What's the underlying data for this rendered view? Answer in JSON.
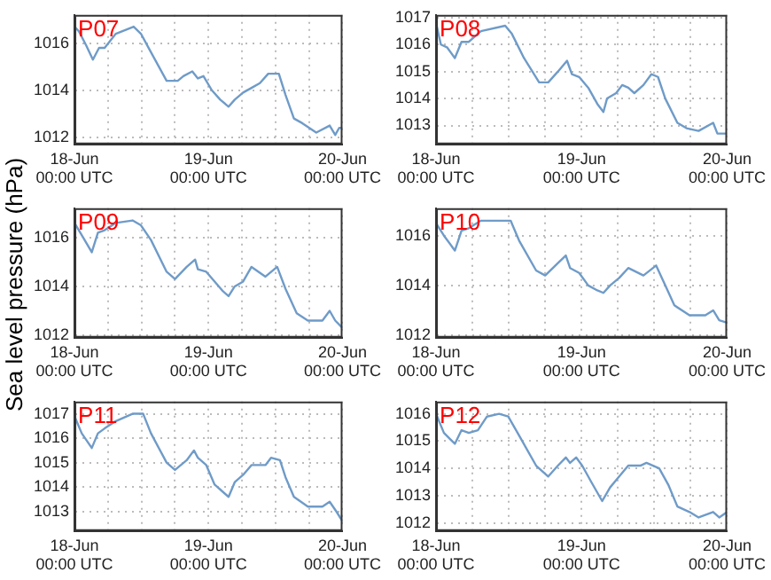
{
  "chart_data": [
    {
      "type": "line",
      "title": "P07",
      "x": [
        "--06-18T00:00",
        "--06-18T00:48",
        "--06-18T02:06",
        "--06-18T03:18",
        "--06-18T04:24",
        "--06-18T05:24",
        "--06-18T07:24",
        "--06-18T10:36",
        "--06-18T11:54",
        "--06-18T13:30",
        "--06-18T16:30",
        "--06-18T18:30",
        "--06-18T19:30",
        "--06-18T21:06",
        "--06-18T22:06",
        "--06-18T23:06",
        "--06-19T00:36",
        "--06-19T02:06",
        "--06-19T03:36",
        "--06-19T04:42",
        "--06-19T06:12",
        "--06-19T07:42",
        "--06-19T09:12",
        "--06-19T10:42",
        "--06-19T12:36",
        "--06-19T13:48",
        "--06-19T15:18",
        "--06-19T16:48",
        "--06-19T19:18",
        "--06-19T21:42",
        "--06-19T22:42",
        "--06-19T23:24",
        "--06-20T00:00"
      ],
      "values": [
        1016.7,
        1016.5,
        1015.9,
        1015.3,
        1015.8,
        1015.8,
        1016.4,
        1016.7,
        1016.4,
        1015.7,
        1014.4,
        1014.4,
        1014.6,
        1014.8,
        1014.5,
        1014.6,
        1014.0,
        1013.6,
        1013.3,
        1013.6,
        1013.9,
        1014.1,
        1014.3,
        1014.7,
        1014.7,
        1013.8,
        1012.8,
        1012.6,
        1012.2,
        1012.5,
        1012.1,
        1012.4,
        1012.4
      ],
      "color": "#6f9bc8",
      "xlim": [
        "--06-18T00:00",
        "--06-20T00:00"
      ],
      "xticks": [
        {
          "value": "--06-18T00:00",
          "label": "18-Jun\n00:00 UTC"
        },
        {
          "value": "--06-18T06:00",
          "label": null
        },
        {
          "value": "--06-18T12:00",
          "label": null
        },
        {
          "value": "--06-18T18:00",
          "label": null
        },
        {
          "value": "--06-19T00:00",
          "label": "19-Jun\n00:00 UTC"
        },
        {
          "value": "--06-19T06:00",
          "label": null
        },
        {
          "value": "--06-19T12:00",
          "label": null
        },
        {
          "value": "--06-19T18:00",
          "label": null
        },
        {
          "value": "--06-20T00:00",
          "label": "20-Jun\n00:00 UTC"
        }
      ],
      "ylim": [
        1011.7,
        1017.2
      ],
      "yticks": [
        1012,
        1014,
        1016
      ],
      "grid": true,
      "marker": "none"
    },
    {
      "type": "line",
      "title": "P08",
      "x": [
        "--06-18T00:00",
        "--06-18T00:48",
        "--06-18T01:48",
        "--06-18T03:06",
        "--06-18T04:12",
        "--06-18T05:24",
        "--06-18T07:24",
        "--06-18T11:24",
        "--06-18T12:30",
        "--06-18T14:30",
        "--06-18T17:00",
        "--06-18T18:30",
        "--06-18T20:06",
        "--06-18T21:36",
        "--06-18T22:24",
        "--06-18T23:36",
        "--06-19T01:06",
        "--06-19T02:36",
        "--06-19T03:36",
        "--06-19T04:12",
        "--06-19T05:42",
        "--06-19T06:42",
        "--06-19T07:42",
        "--06-19T08:42",
        "--06-19T10:12",
        "--06-19T11:30",
        "--06-19T12:36",
        "--06-19T13:48",
        "--06-19T15:48",
        "--06-19T17:18",
        "--06-19T19:18",
        "--06-19T21:42",
        "--06-19T22:24",
        "--06-20T00:00"
      ],
      "values": [
        1016.8,
        1016.0,
        1015.9,
        1015.5,
        1016.1,
        1016.1,
        1016.5,
        1016.7,
        1016.4,
        1015.5,
        1014.6,
        1014.6,
        1015.0,
        1015.4,
        1014.9,
        1014.8,
        1014.4,
        1013.8,
        1013.5,
        1014.0,
        1014.2,
        1014.5,
        1014.4,
        1014.2,
        1014.5,
        1014.9,
        1014.8,
        1014.0,
        1013.1,
        1012.9,
        1012.8,
        1013.1,
        1012.7,
        1012.7
      ],
      "color": "#6f9bc8",
      "xlim": [
        "--06-18T00:00",
        "--06-20T00:00"
      ],
      "xticks": [
        {
          "value": "--06-18T00:00",
          "label": "18-Jun\n00:00 UTC"
        },
        {
          "value": "--06-18T06:00",
          "label": null
        },
        {
          "value": "--06-18T12:00",
          "label": null
        },
        {
          "value": "--06-18T18:00",
          "label": null
        },
        {
          "value": "--06-19T00:00",
          "label": "19-Jun\n00:00 UTC"
        },
        {
          "value": "--06-19T06:00",
          "label": null
        },
        {
          "value": "--06-19T12:00",
          "label": null
        },
        {
          "value": "--06-19T18:00",
          "label": null
        },
        {
          "value": "--06-20T00:00",
          "label": "20-Jun\n00:00 UTC"
        }
      ],
      "ylim": [
        1012.3,
        1017.1
      ],
      "yticks": [
        1013,
        1014,
        1015,
        1016,
        1017
      ],
      "grid": true,
      "marker": "none"
    },
    {
      "type": "line",
      "title": "P09",
      "ylabel": "Sea level pressure (hPa)",
      "x": [
        "--06-18T00:00",
        "--06-18T01:18",
        "--06-18T03:06",
        "--06-18T04:12",
        "--06-18T05:24",
        "--06-18T07:24",
        "--06-18T10:24",
        "--06-18T11:54",
        "--06-18T13:42",
        "--06-18T16:30",
        "--06-18T18:00",
        "--06-18T20:06",
        "--06-18T21:36",
        "--06-18T22:06",
        "--06-18T23:36",
        "--06-19T01:06",
        "--06-19T02:36",
        "--06-19T03:36",
        "--06-19T04:42",
        "--06-19T06:12",
        "--06-19T07:42",
        "--06-19T10:12",
        "--06-19T12:18",
        "--06-19T13:48",
        "--06-19T15:48",
        "--06-19T17:48",
        "--06-19T20:24",
        "--06-19T21:42",
        "--06-19T22:42",
        "--06-20T00:00"
      ],
      "values": [
        1016.6,
        1016.1,
        1015.4,
        1016.2,
        1016.3,
        1016.6,
        1016.7,
        1016.5,
        1015.9,
        1014.6,
        1014.3,
        1014.8,
        1015.1,
        1014.7,
        1014.6,
        1014.2,
        1013.8,
        1013.6,
        1014.0,
        1014.2,
        1014.8,
        1014.4,
        1014.8,
        1013.9,
        1012.9,
        1012.6,
        1012.6,
        1013.0,
        1012.6,
        1012.3
      ],
      "color": "#6f9bc8",
      "xlim": [
        "--06-18T00:00",
        "--06-20T00:00"
      ],
      "xticks": [
        {
          "value": "--06-18T00:00",
          "label": "18-Jun\n00:00 UTC"
        },
        {
          "value": "--06-18T06:00",
          "label": null
        },
        {
          "value": "--06-18T12:00",
          "label": null
        },
        {
          "value": "--06-18T18:00",
          "label": null
        },
        {
          "value": "--06-19T00:00",
          "label": "19-Jun\n00:00 UTC"
        },
        {
          "value": "--06-19T06:00",
          "label": null
        },
        {
          "value": "--06-19T12:00",
          "label": null
        },
        {
          "value": "--06-19T18:00",
          "label": null
        },
        {
          "value": "--06-20T00:00",
          "label": "20-Jun\n00:00 UTC"
        }
      ],
      "ylim": [
        1011.9,
        1017.2
      ],
      "yticks": [
        1012,
        1014,
        1016
      ],
      "grid": true,
      "marker": "none"
    },
    {
      "type": "line",
      "title": "P10",
      "x": [
        "--06-18T00:00",
        "--06-18T01:18",
        "--06-18T03:06",
        "--06-18T04:12",
        "--06-18T05:24",
        "--06-18T07:24",
        "--06-18T10:24",
        "--06-18T12:18",
        "--06-18T13:42",
        "--06-18T16:30",
        "--06-18T18:00",
        "--06-18T20:06",
        "--06-18T21:24",
        "--06-18T22:06",
        "--06-18T23:36",
        "--06-19T01:06",
        "--06-19T02:36",
        "--06-19T03:36",
        "--06-19T04:42",
        "--06-19T06:12",
        "--06-19T07:42",
        "--06-19T10:12",
        "--06-19T12:18",
        "--06-19T13:48",
        "--06-19T15:18",
        "--06-19T17:48",
        "--06-19T20:24",
        "--06-19T21:42",
        "--06-19T22:42",
        "--06-20T00:00"
      ],
      "values": [
        1016.5,
        1016.0,
        1015.4,
        1016.2,
        1016.3,
        1016.6,
        1016.6,
        1016.6,
        1015.8,
        1014.6,
        1014.4,
        1014.9,
        1015.2,
        1014.7,
        1014.5,
        1014.0,
        1013.8,
        1013.7,
        1014.0,
        1014.3,
        1014.7,
        1014.4,
        1014.8,
        1014.0,
        1013.2,
        1012.8,
        1012.8,
        1013.0,
        1012.6,
        1012.5
      ],
      "color": "#6f9bc8",
      "xlim": [
        "--06-18T00:00",
        "--06-20T00:00"
      ],
      "xticks": [
        {
          "value": "--06-18T00:00",
          "label": "18-Jun\n00:00 UTC"
        },
        {
          "value": "--06-18T06:00",
          "label": null
        },
        {
          "value": "--06-18T12:00",
          "label": null
        },
        {
          "value": "--06-18T18:00",
          "label": null
        },
        {
          "value": "--06-19T00:00",
          "label": "19-Jun\n00:00 UTC"
        },
        {
          "value": "--06-19T06:00",
          "label": null
        },
        {
          "value": "--06-19T12:00",
          "label": null
        },
        {
          "value": "--06-19T18:00",
          "label": null
        },
        {
          "value": "--06-20T00:00",
          "label": "20-Jun\n00:00 UTC"
        }
      ],
      "ylim": [
        1011.9,
        1017.1
      ],
      "yticks": [
        1012,
        1014,
        1016
      ],
      "grid": true,
      "marker": "none"
    },
    {
      "type": "line",
      "title": "P11",
      "x": [
        "--06-18T00:00",
        "--06-18T01:18",
        "--06-18T03:06",
        "--06-18T04:12",
        "--06-18T05:24",
        "--06-18T07:24",
        "--06-18T10:24",
        "--06-18T12:18",
        "--06-18T13:42",
        "--06-18T16:30",
        "--06-18T18:00",
        "--06-18T20:06",
        "--06-18T21:24",
        "--06-18T22:06",
        "--06-18T23:36",
        "--06-19T01:06",
        "--06-19T02:36",
        "--06-19T03:36",
        "--06-19T04:42",
        "--06-19T06:12",
        "--06-19T07:42",
        "--06-19T10:12",
        "--06-19T11:12",
        "--06-19T12:48",
        "--06-19T13:48",
        "--06-19T15:18",
        "--06-19T17:48",
        "--06-19T20:24",
        "--06-19T21:42",
        "--06-19T22:54",
        "--06-20T00:00"
      ],
      "values": [
        1016.9,
        1016.2,
        1015.6,
        1016.2,
        1016.4,
        1016.7,
        1017.0,
        1017.0,
        1016.2,
        1015.0,
        1014.7,
        1015.1,
        1015.5,
        1015.2,
        1014.9,
        1014.1,
        1013.8,
        1013.6,
        1014.2,
        1014.5,
        1014.9,
        1014.9,
        1015.2,
        1015.1,
        1014.4,
        1013.6,
        1013.2,
        1013.2,
        1013.4,
        1013.0,
        1012.6
      ],
      "color": "#6f9bc8",
      "xlim": [
        "--06-18T00:00",
        "--06-20T00:00"
      ],
      "xticks": [
        {
          "value": "--06-18T00:00",
          "label": "18-Jun\n00:00 UTC"
        },
        {
          "value": "--06-18T06:00",
          "label": null
        },
        {
          "value": "--06-18T12:00",
          "label": null
        },
        {
          "value": "--06-18T18:00",
          "label": null
        },
        {
          "value": "--06-19T00:00",
          "label": "19-Jun\n00:00 UTC"
        },
        {
          "value": "--06-19T06:00",
          "label": null
        },
        {
          "value": "--06-19T12:00",
          "label": null
        },
        {
          "value": "--06-19T18:00",
          "label": null
        },
        {
          "value": "--06-20T00:00",
          "label": "20-Jun\n00:00 UTC"
        }
      ],
      "ylim": [
        1012.2,
        1017.5
      ],
      "yticks": [
        1013,
        1014,
        1015,
        1016,
        1017
      ],
      "grid": true,
      "marker": "none"
    },
    {
      "type": "line",
      "title": "P12",
      "x": [
        "--06-18T00:00",
        "--06-18T01:18",
        "--06-18T03:06",
        "--06-18T04:12",
        "--06-18T05:24",
        "--06-18T06:54",
        "--06-18T08:24",
        "--06-18T10:24",
        "--06-18T11:54",
        "--06-18T13:42",
        "--06-18T16:30",
        "--06-18T18:30",
        "--06-18T20:06",
        "--06-18T21:24",
        "--06-18T22:06",
        "--06-18T23:06",
        "--06-19T00:06",
        "--06-19T01:36",
        "--06-19T03:24",
        "--06-19T04:42",
        "--06-19T06:12",
        "--06-19T07:42",
        "--06-19T09:42",
        "--06-19T10:42",
        "--06-19T12:48",
        "--06-19T14:18",
        "--06-19T15:48",
        "--06-19T17:48",
        "--06-19T19:18",
        "--06-19T21:42",
        "--06-19T22:42",
        "--06-20T00:00"
      ],
      "values": [
        1016.0,
        1015.3,
        1014.9,
        1015.4,
        1015.3,
        1015.4,
        1015.9,
        1016.0,
        1015.9,
        1015.2,
        1014.1,
        1013.7,
        1014.1,
        1014.4,
        1014.2,
        1014.4,
        1014.1,
        1013.5,
        1012.8,
        1013.3,
        1013.7,
        1014.1,
        1014.1,
        1014.2,
        1014.0,
        1013.4,
        1012.6,
        1012.4,
        1012.2,
        1012.4,
        1012.2,
        1012.4
      ],
      "color": "#6f9bc8",
      "xlim": [
        "--06-18T00:00",
        "--06-20T00:00"
      ],
      "xticks": [
        {
          "value": "--06-18T00:00",
          "label": "18-Jun\n00:00 UTC"
        },
        {
          "value": "--06-18T06:00",
          "label": null
        },
        {
          "value": "--06-18T12:00",
          "label": null
        },
        {
          "value": "--06-18T18:00",
          "label": null
        },
        {
          "value": "--06-19T00:00",
          "label": "19-Jun\n00:00 UTC"
        },
        {
          "value": "--06-19T06:00",
          "label": null
        },
        {
          "value": "--06-19T12:00",
          "label": null
        },
        {
          "value": "--06-19T18:00",
          "label": null
        },
        {
          "value": "--06-20T00:00",
          "label": "20-Jun\n00:00 UTC"
        }
      ],
      "ylim": [
        1011.7,
        1016.45
      ],
      "yticks": [
        1012,
        1013,
        1014,
        1015,
        1016
      ],
      "grid": true,
      "marker": "none"
    }
  ]
}
